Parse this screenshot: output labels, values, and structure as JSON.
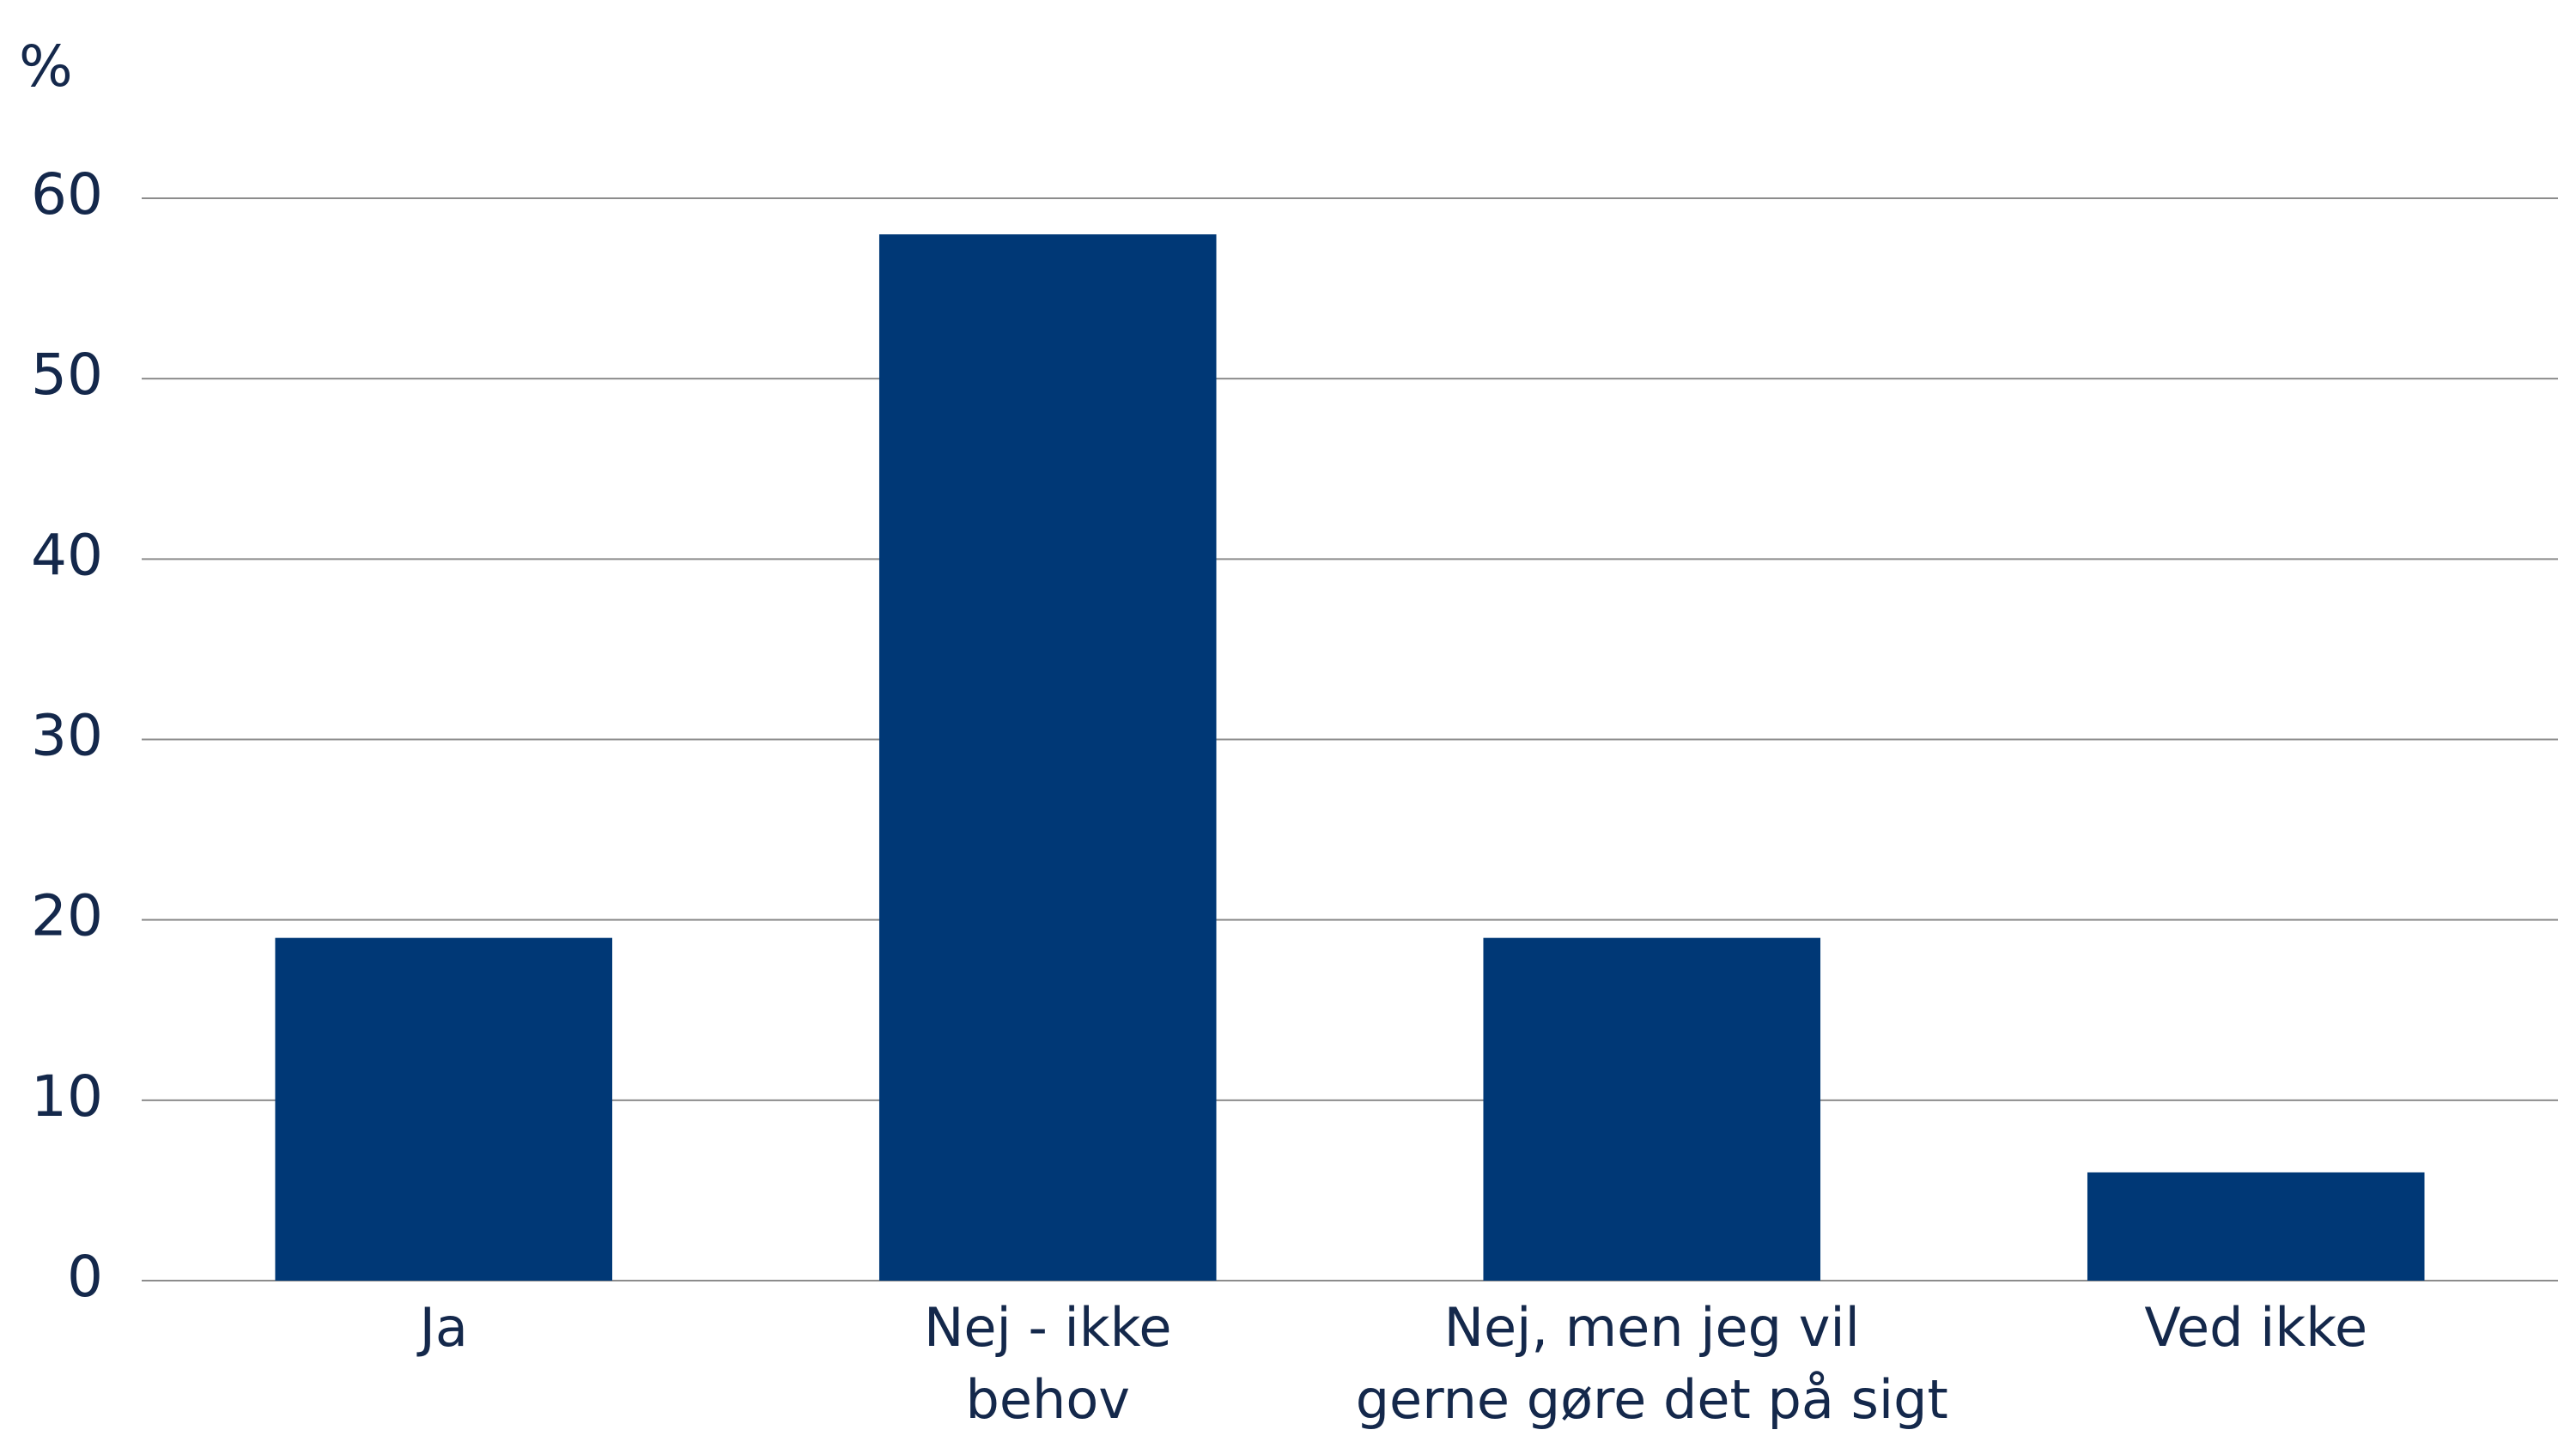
{
  "chart_data": {
    "type": "bar",
    "y_label": "%",
    "categories": [
      "Ja",
      "Nej - ikke\nbehov",
      "Nej, men jeg vil\ngerne gøre det på sigt",
      "Ved ikke"
    ],
    "values": [
      19,
      58,
      19,
      6
    ],
    "color": "#003876",
    "ylim": [
      0,
      60
    ],
    "yticks": [
      0,
      10,
      20,
      30,
      40,
      50,
      60
    ],
    "grid": true
  }
}
